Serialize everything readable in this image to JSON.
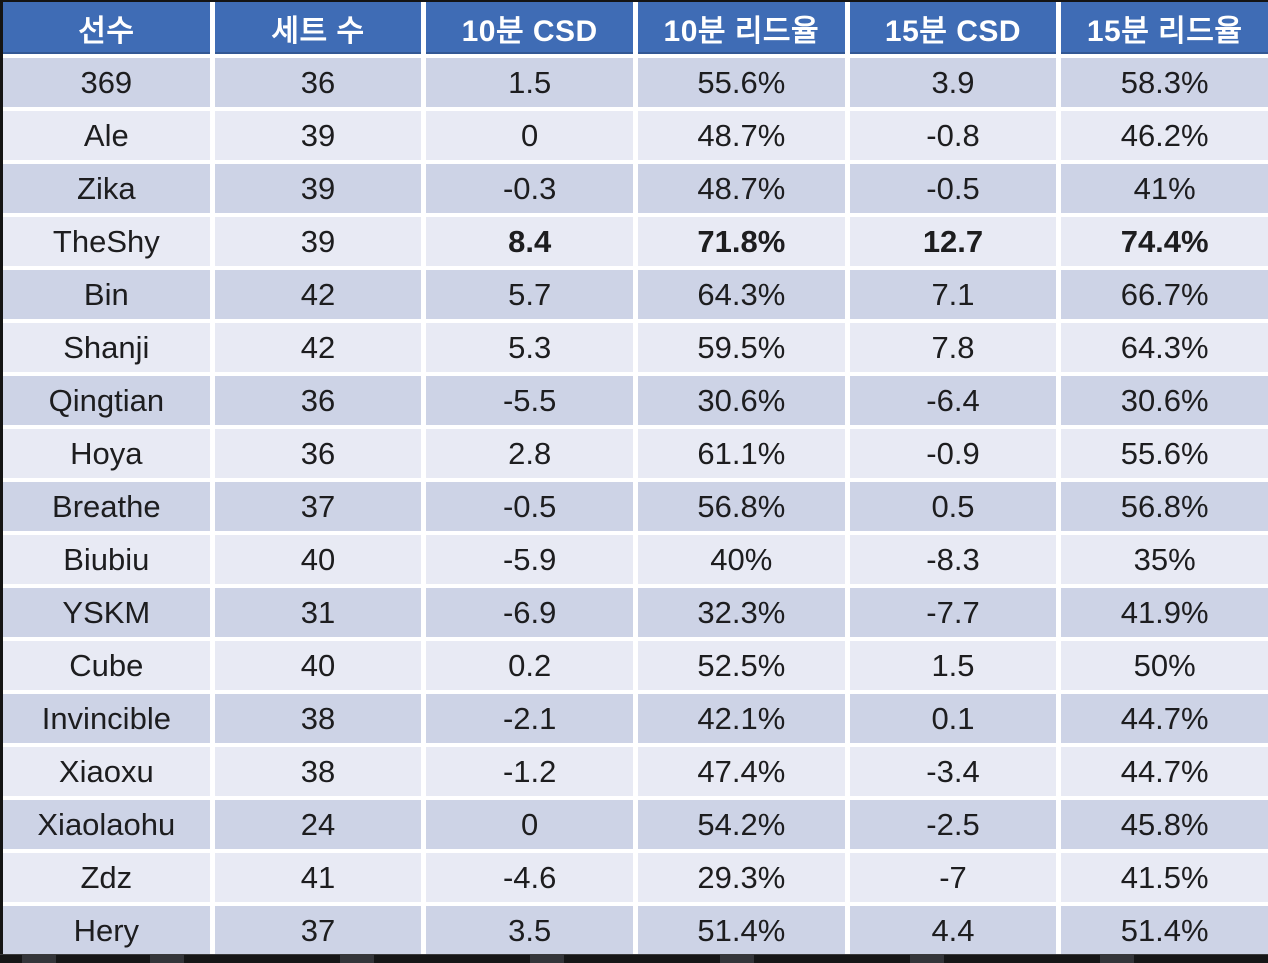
{
  "chart_data": {
    "type": "table",
    "title": "",
    "columns": [
      {
        "id": "player",
        "label": "선수"
      },
      {
        "id": "sets",
        "label": "세트 수"
      },
      {
        "id": "csd10",
        "label": "10분 CSD"
      },
      {
        "id": "lead10",
        "label": "10분 리드율"
      },
      {
        "id": "csd15",
        "label": "15분 CSD"
      },
      {
        "id": "lead15",
        "label": "15분 리드율"
      }
    ],
    "rows": [
      {
        "player": "369",
        "sets": "36",
        "csd10": "1.5",
        "lead10": "55.6%",
        "csd15": "3.9",
        "lead15": "58.3%",
        "emphasized": false
      },
      {
        "player": "Ale",
        "sets": "39",
        "csd10": "0",
        "lead10": "48.7%",
        "csd15": "-0.8",
        "lead15": "46.2%",
        "emphasized": false
      },
      {
        "player": "Zika",
        "sets": "39",
        "csd10": "-0.3",
        "lead10": "48.7%",
        "csd15": "-0.5",
        "lead15": "41%",
        "emphasized": false
      },
      {
        "player": "TheShy",
        "sets": "39",
        "csd10": "8.4",
        "lead10": "71.8%",
        "csd15": "12.7",
        "lead15": "74.4%",
        "emphasized": true
      },
      {
        "player": "Bin",
        "sets": "42",
        "csd10": "5.7",
        "lead10": "64.3%",
        "csd15": "7.1",
        "lead15": "66.7%",
        "emphasized": false
      },
      {
        "player": "Shanji",
        "sets": "42",
        "csd10": "5.3",
        "lead10": "59.5%",
        "csd15": "7.8",
        "lead15": "64.3%",
        "emphasized": false
      },
      {
        "player": "Qingtian",
        "sets": "36",
        "csd10": "-5.5",
        "lead10": "30.6%",
        "csd15": "-6.4",
        "lead15": "30.6%",
        "emphasized": false
      },
      {
        "player": "Hoya",
        "sets": "36",
        "csd10": "2.8",
        "lead10": "61.1%",
        "csd15": "-0.9",
        "lead15": "55.6%",
        "emphasized": false
      },
      {
        "player": "Breathe",
        "sets": "37",
        "csd10": "-0.5",
        "lead10": "56.8%",
        "csd15": "0.5",
        "lead15": "56.8%",
        "emphasized": false
      },
      {
        "player": "Biubiu",
        "sets": "40",
        "csd10": "-5.9",
        "lead10": "40%",
        "csd15": "-8.3",
        "lead15": "35%",
        "emphasized": false
      },
      {
        "player": "YSKM",
        "sets": "31",
        "csd10": "-6.9",
        "lead10": "32.3%",
        "csd15": "-7.7",
        "lead15": "41.9%",
        "emphasized": false
      },
      {
        "player": "Cube",
        "sets": "40",
        "csd10": "0.2",
        "lead10": "52.5%",
        "csd15": "1.5",
        "lead15": "50%",
        "emphasized": false
      },
      {
        "player": "Invincible",
        "sets": "38",
        "csd10": "-2.1",
        "lead10": "42.1%",
        "csd15": "0.1",
        "lead15": "44.7%",
        "emphasized": false
      },
      {
        "player": "Xiaoxu",
        "sets": "38",
        "csd10": "-1.2",
        "lead10": "47.4%",
        "csd15": "-3.4",
        "lead15": "44.7%",
        "emphasized": false
      },
      {
        "player": "Xiaolaohu",
        "sets": "24",
        "csd10": "0",
        "lead10": "54.2%",
        "csd15": "-2.5",
        "lead15": "45.8%",
        "emphasized": false
      },
      {
        "player": "Zdz",
        "sets": "41",
        "csd10": "-4.6",
        "lead10": "29.3%",
        "csd15": "-7",
        "lead15": "41.5%",
        "emphasized": false
      },
      {
        "player": "Hery",
        "sets": "37",
        "csd10": "3.5",
        "lead10": "51.4%",
        "csd15": "4.4",
        "lead15": "51.4%",
        "emphasized": false
      }
    ],
    "emphasized_player": "TheShy",
    "emphasis_columns": [
      "csd10",
      "lead10",
      "csd15",
      "lead15"
    ],
    "legend_position": "none",
    "grid": true
  },
  "colors": {
    "header_bg": "#3f6cb5",
    "header_text": "#ffffff",
    "row_dark": "#cdd3e6",
    "row_light": "#e8eaf4",
    "cell_text": "#1d1d1f",
    "grid_line": "#ffffff",
    "page_bg": "#0b0b0c"
  }
}
